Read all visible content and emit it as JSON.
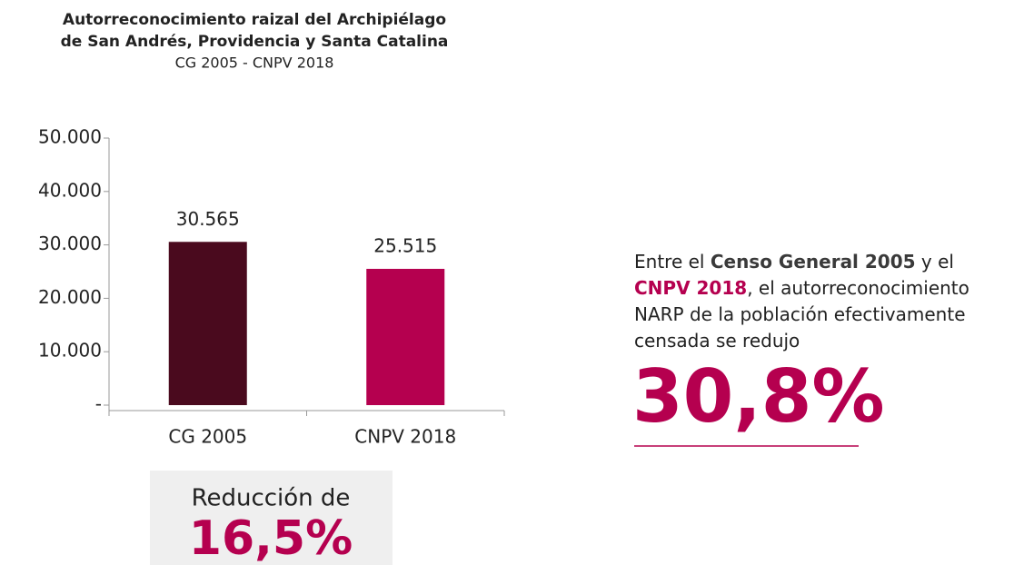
{
  "chart_data": {
    "type": "bar",
    "title": [
      "Autorreconocimiento raizal del Archipiélago",
      "de San Andrés, Providencia y Santa Catalina"
    ],
    "subtitle": "CG 2005 - CNPV 2018",
    "categories": [
      "CG 2005",
      "CNPV 2018"
    ],
    "values": [
      30565,
      25515
    ],
    "value_labels": [
      "30.565",
      "25.515"
    ],
    "colors": [
      "#4a0a1e",
      "#b5004f"
    ],
    "ylim": [
      0,
      50000
    ],
    "yticks": [
      {
        "value": 0,
        "label": "-"
      },
      {
        "value": 10000,
        "label": "10.000"
      },
      {
        "value": 20000,
        "label": "20.000"
      },
      {
        "value": 30000,
        "label": "30.000"
      },
      {
        "value": 40000,
        "label": "40.000"
      },
      {
        "value": 50000,
        "label": "50.000"
      }
    ],
    "grid": false
  },
  "reduction": {
    "label": "Reducción de",
    "value": "16,5%"
  },
  "note": {
    "lines": [
      [
        {
          "text": "Entre el "
        },
        {
          "text": "Censo General 2005",
          "bold": true,
          "color": "#3a3a3a"
        },
        {
          "text": " y el"
        }
      ],
      [
        {
          "text": "CNPV 2018",
          "bold": true,
          "color": "#b5004f"
        },
        {
          "text": ", el autorreconocimiento"
        }
      ],
      [
        {
          "text": "NARP de la población efectivamente"
        }
      ],
      [
        {
          "text": "censada se redujo"
        }
      ]
    ],
    "highlight": "30,8%"
  }
}
